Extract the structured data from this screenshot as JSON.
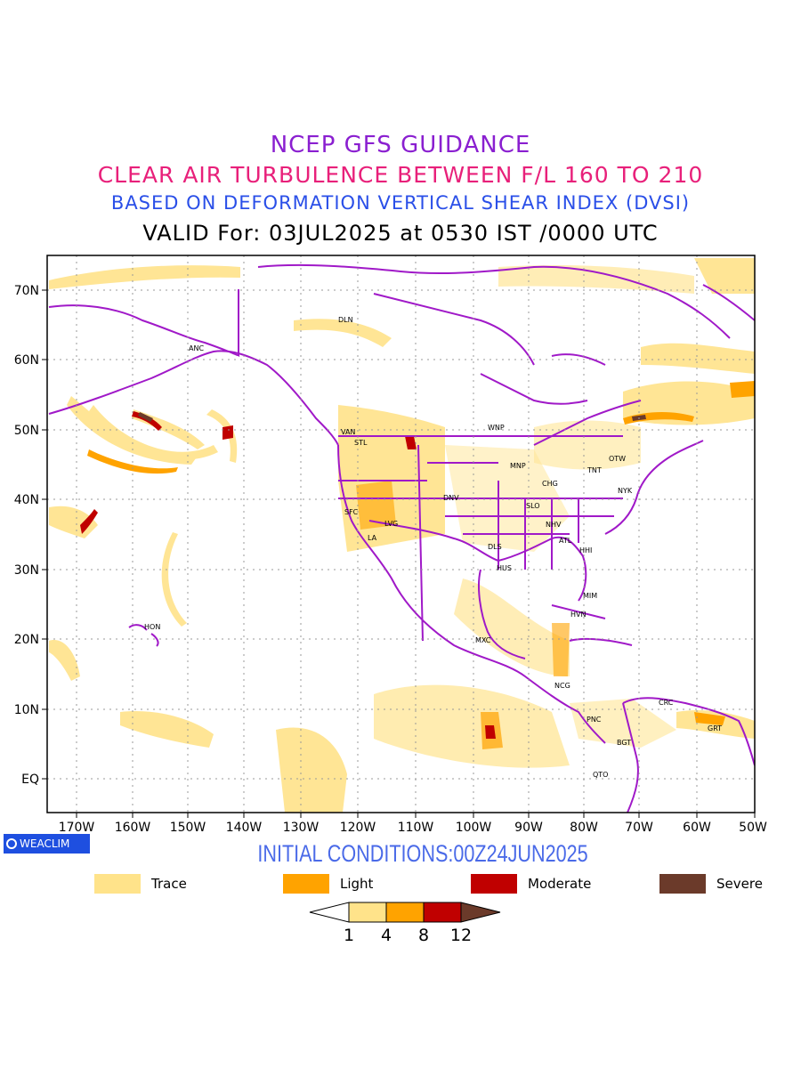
{
  "title": {
    "line1": "NCEP GFS GUIDANCE",
    "line2": "CLEAR AIR TURBULENCE BETWEEN F/L 160 TO 210",
    "line3": "BASED ON DEFORMATION VERTICAL SHEAR INDEX (DVSI)",
    "line4": "VALID For: 03JUL2025 at 0530 IST /0000 UTC",
    "colors": {
      "line1": "#8a1fd0",
      "line2": "#e8207a",
      "line3": "#2a4fe8",
      "line4": "#000000"
    }
  },
  "map": {
    "lat_labels": [
      "70N",
      "60N",
      "50N",
      "40N",
      "30N",
      "20N",
      "10N",
      "EQ"
    ],
    "lon_labels": [
      "170W",
      "160W",
      "150W",
      "140W",
      "130W",
      "120W",
      "110W",
      "100W",
      "90W",
      "80W",
      "70W",
      "60W",
      "50W"
    ],
    "coastline_color": "#a019c8",
    "stations": [
      "ANC",
      "DLN",
      "VAN",
      "STL",
      "WNP",
      "MNP",
      "OTW",
      "TNT",
      "CHG",
      "NYK",
      "DNV",
      "SFC",
      "LVG",
      "LA",
      "SLO",
      "NHV",
      "ATL",
      "DLS",
      "HHI",
      "HUS",
      "MIM",
      "HVN",
      "HON",
      "MXC",
      "NCG",
      "CRC",
      "PNC",
      "BGT",
      "GRT",
      "QTO"
    ]
  },
  "badge": {
    "label": "WEACLIM"
  },
  "initial_conditions": "INITIAL CONDITIONS:00Z24JUN2025",
  "legend": {
    "items": [
      {
        "label": "Trace",
        "color": "#ffe38a"
      },
      {
        "label": "Light",
        "color": "#ffa300"
      },
      {
        "label": "Moderate",
        "color": "#c00000"
      },
      {
        "label": "Severe",
        "color": "#6b3a2a"
      }
    ]
  },
  "colorbar": {
    "ticks": [
      "1",
      "4",
      "8",
      "12"
    ],
    "colors": [
      "#ffffff",
      "#ffe38a",
      "#ffa300",
      "#c00000",
      "#6b3a2a"
    ]
  }
}
